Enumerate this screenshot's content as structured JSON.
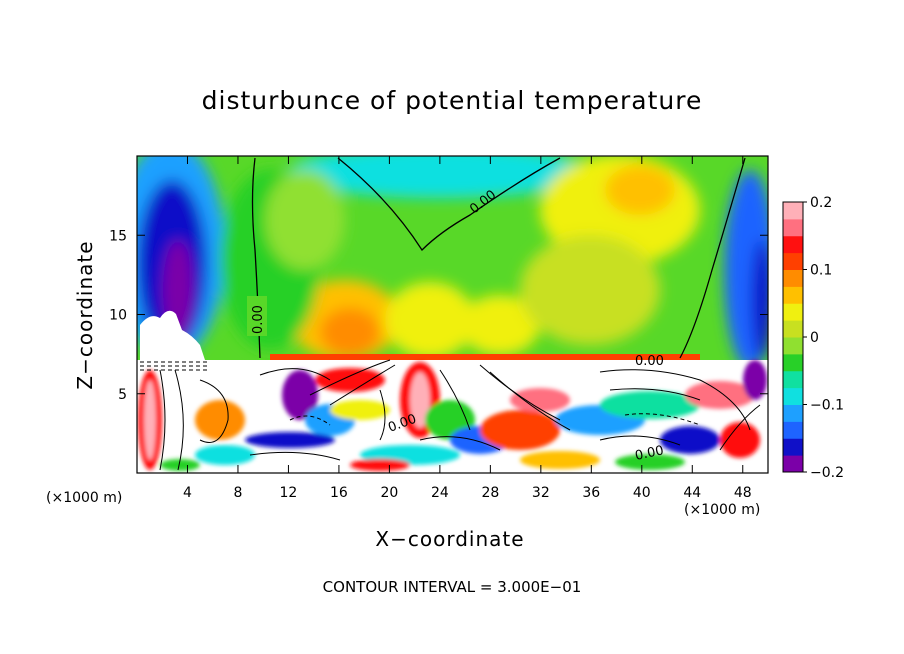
{
  "chart_data": {
    "type": "heatmap",
    "title": "disturbunce of potential temperature",
    "xlabel": "X−coordinate",
    "ylabel": "Z−coordinate",
    "x_unit_left": "(×1000 m)",
    "x_unit_right": "(×1000 m)",
    "footnote": "CONTOUR INTERVAL = 3.000E−01",
    "xlim": [
      0,
      50
    ],
    "ylim": [
      0,
      20
    ],
    "x_ticks": [
      "4",
      "8",
      "12",
      "16",
      "20",
      "24",
      "28",
      "32",
      "36",
      "40",
      "44",
      "48"
    ],
    "y_ticks": [
      "5",
      "10",
      "15"
    ],
    "colorbar": {
      "range": [
        -0.2,
        0.2
      ],
      "tick_labels": [
        "0.2",
        "0.1",
        "0",
        "−0.1",
        "−0.2"
      ],
      "colors": [
        "#7b00a8",
        "#1010c8",
        "#1e64ff",
        "#1ea0ff",
        "#10e0e0",
        "#10e0a0",
        "#28d028",
        "#90e030",
        "#c8e020",
        "#f0f010",
        "#ffc000",
        "#ff8c00",
        "#ff4000",
        "#ff1010",
        "#ff7080",
        "#ffb0b8"
      ]
    },
    "contour_labels": [
      "0.00",
      "0.00",
      "0.00",
      "0.00",
      "0.00"
    ]
  }
}
